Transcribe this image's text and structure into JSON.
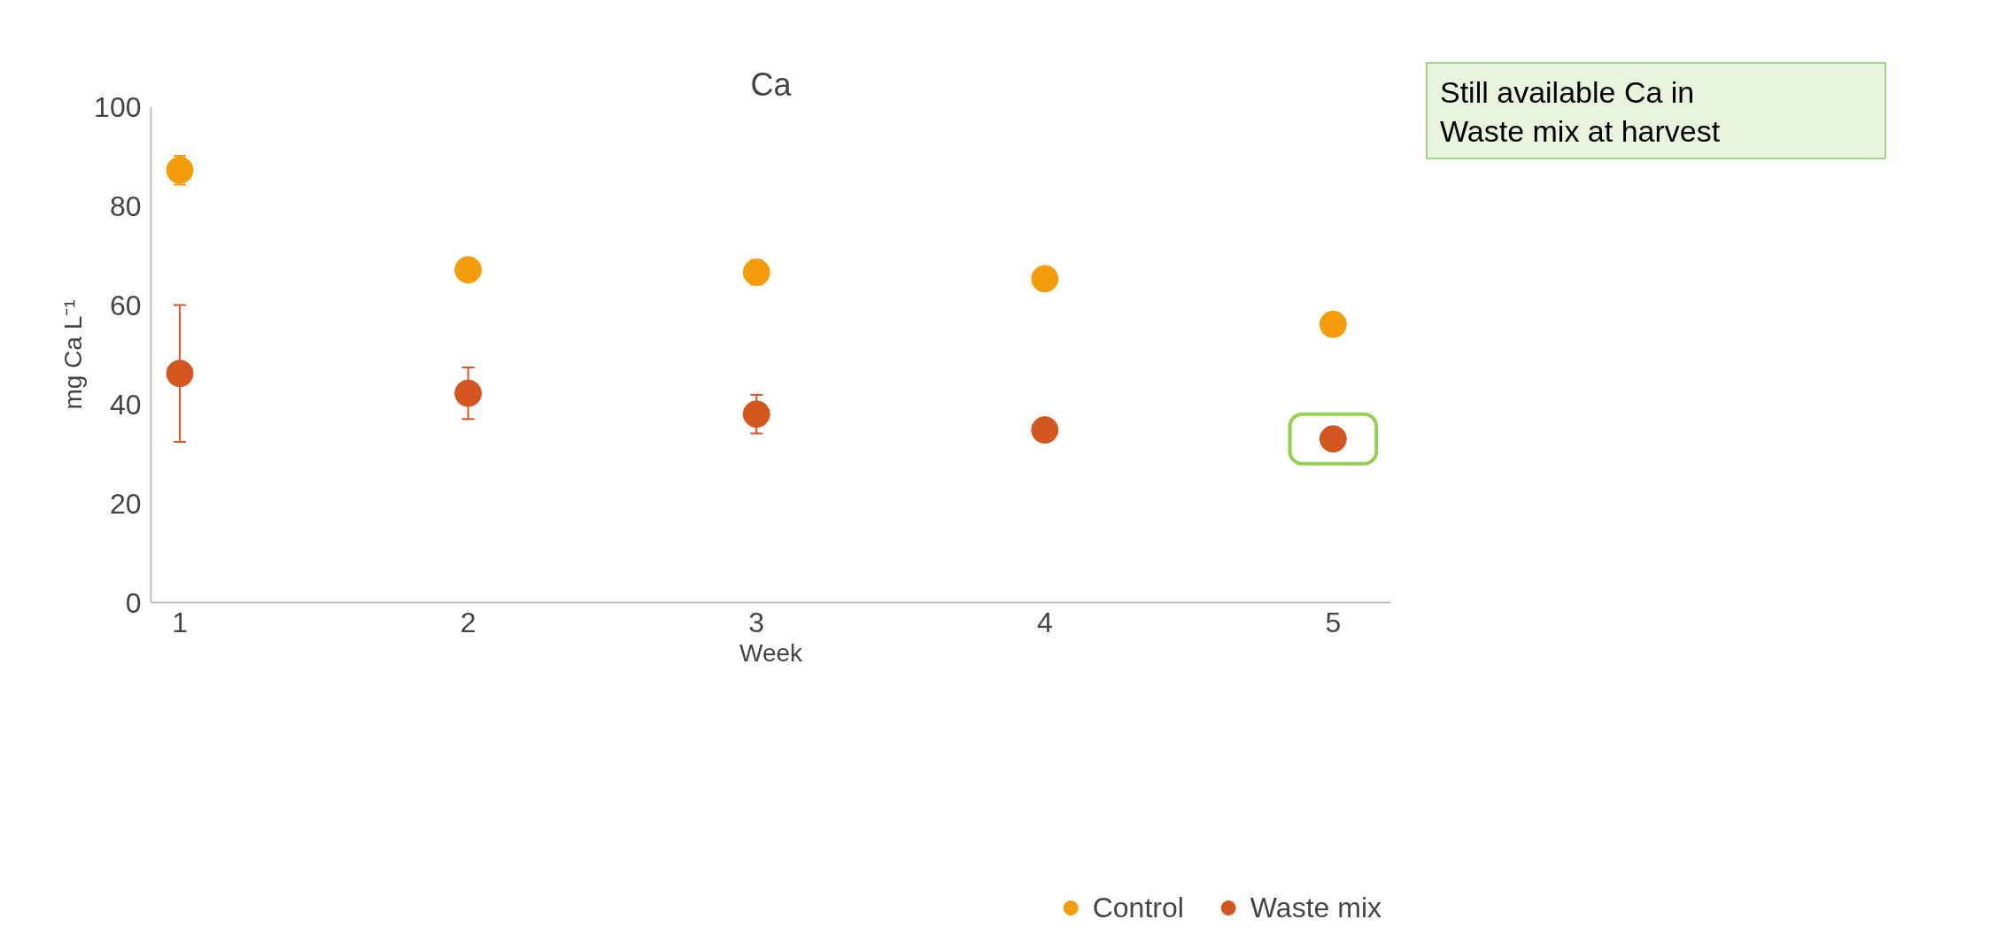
{
  "chart_data": {
    "type": "scatter",
    "title": "Ca",
    "xlabel": "Week",
    "ylabel": "mg Ca L⁻¹",
    "x": [
      1,
      2,
      3,
      4,
      5
    ],
    "xlim": [
      0.9,
      5.2
    ],
    "xticks": [
      1,
      2,
      3,
      4,
      5
    ],
    "ylim": [
      0,
      100
    ],
    "yticks": [
      0,
      20,
      40,
      60,
      80,
      100
    ],
    "series": [
      {
        "name": "Control",
        "color": "#f59c0b",
        "values": [
          87.2,
          67.1,
          66.6,
          65.3,
          56.1
        ],
        "errors": [
          2.9,
          null,
          2.5,
          null,
          null
        ]
      },
      {
        "name": "Waste mix",
        "color": "#d3561f",
        "values": [
          46.2,
          42.2,
          38.0,
          34.8,
          33.0
        ],
        "errors": [
          13.8,
          5.2,
          3.9,
          null,
          null
        ]
      }
    ],
    "annotations": [
      "Still available Ca in\nWaste mix at harvest"
    ],
    "marker": "circle",
    "grid": false,
    "legend": "bottom"
  }
}
